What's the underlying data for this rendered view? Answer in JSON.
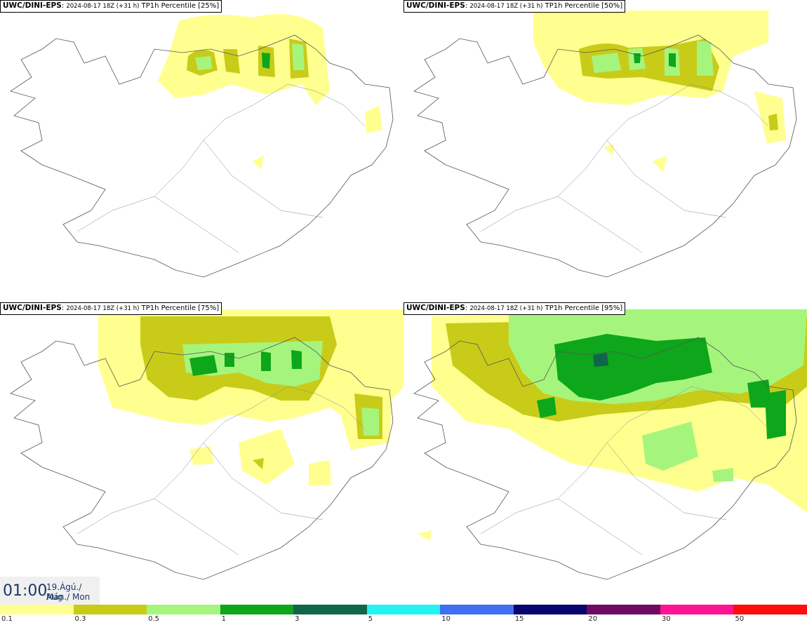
{
  "panels": [
    {
      "source": "UWC/DINI-EPS",
      "run": "2024-08-17 18Z (+31 h)",
      "label": "TP1h Percentile [25%]"
    },
    {
      "source": "UWC/DINI-EPS",
      "run": "2024-08-17 18Z (+31 h)",
      "label": "TP1h Percentile [50%]"
    },
    {
      "source": "UWC/DINI-EPS",
      "run": "2024-08-17 18Z (+31 h)",
      "label": "TP1h Percentile [75%]"
    },
    {
      "source": "UWC/DINI-EPS",
      "run": "2024-08-17 18Z (+31 h)",
      "label": "TP1h Percentile [95%]"
    }
  ],
  "time": {
    "clock": "01:00",
    "date_line1": "19.Ágú./ Aug",
    "date_line2": "Mán./ Mon"
  },
  "scale": {
    "colors": [
      "#ffff8f",
      "#c8cc19",
      "#a5f57d",
      "#0ea61b",
      "#10664b",
      "#25f2f2",
      "#3f6ff2",
      "#06066e",
      "#6e0a62",
      "#ff1493",
      "#ff0d0d"
    ],
    "ticks": [
      "0.1",
      "0.3",
      "0.5",
      "1",
      "3",
      "5",
      "10",
      "15",
      "20",
      "30",
      "50"
    ]
  }
}
